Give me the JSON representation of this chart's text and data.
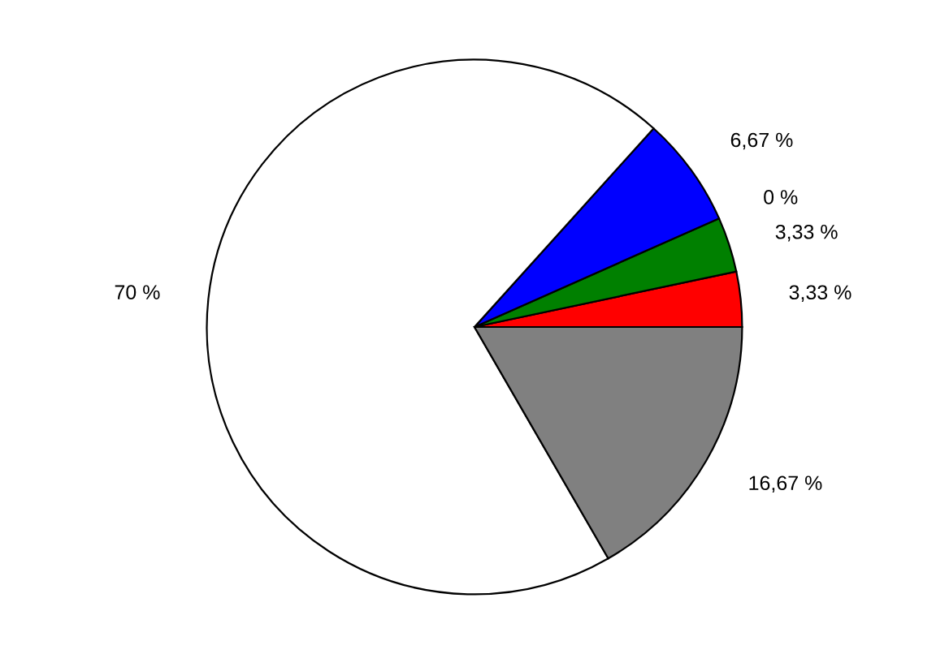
{
  "chart_data": {
    "type": "pie",
    "categories": [
      null,
      null,
      null,
      null,
      null,
      null
    ],
    "values": [
      3.33,
      3.33,
      0,
      6.67,
      70,
      16.67
    ],
    "value_labels": [
      "3,33 %",
      "3,33 %",
      "0 %",
      "6,67 %",
      "70 %",
      "16,67 %"
    ],
    "colors": [
      "#ff0000",
      "#008000",
      null,
      "#0000ff",
      "#ffffff",
      "#808080"
    ]
  }
}
